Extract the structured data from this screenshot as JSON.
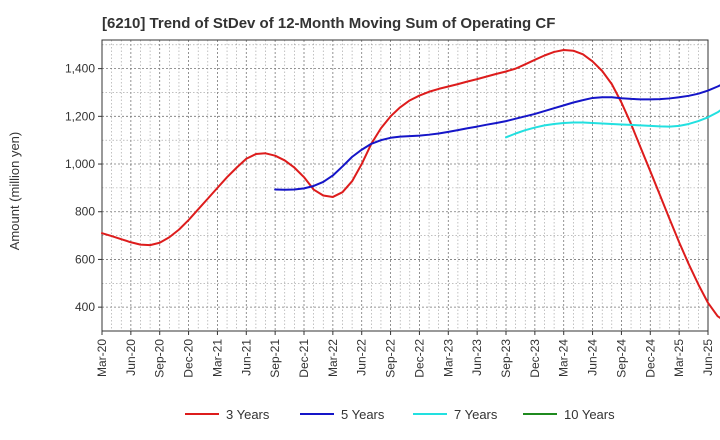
{
  "chart_data": {
    "type": "line",
    "title": "[6210]  Trend of StDev of 12-Month Moving Sum of Operating CF",
    "xlabel": "",
    "ylabel": "Amount (million yen)",
    "x_tick_labels": [
      "Mar-20",
      "Jun-20",
      "Sep-20",
      "Dec-20",
      "Mar-21",
      "Jun-21",
      "Sep-21",
      "Dec-21",
      "Mar-22",
      "Jun-22",
      "Sep-22",
      "Dec-22",
      "Mar-23",
      "Jun-23",
      "Sep-23",
      "Dec-23",
      "Mar-24",
      "Jun-24",
      "Sep-24",
      "Dec-24",
      "Mar-25",
      "Jun-25"
    ],
    "y_ticks": [
      400,
      600,
      800,
      1000,
      1200,
      1400
    ],
    "y_tick_labels": [
      "400",
      "600",
      "800",
      "1,000",
      "1,200",
      "1,400"
    ],
    "ylim": [
      300,
      1520
    ],
    "grid": true,
    "legend_position": "bottom",
    "series": [
      {
        "name": "3 Years",
        "color": "#dd1c1c",
        "start_month": 0,
        "values": [
          710,
          698,
          685,
          672,
          662,
          660,
          670,
          693,
          725,
          765,
          810,
          855,
          900,
          945,
          985,
          1022,
          1042,
          1045,
          1035,
          1015,
          985,
          945,
          893,
          868,
          862,
          882,
          928,
          1000,
          1085,
          1150,
          1200,
          1238,
          1267,
          1287,
          1303,
          1315,
          1325,
          1335,
          1346,
          1356,
          1367,
          1378,
          1388,
          1400,
          1418,
          1437,
          1455,
          1470,
          1478,
          1475,
          1460,
          1430,
          1390,
          1335,
          1258,
          1168,
          1068,
          970,
          870,
          770,
          672,
          580,
          495,
          418,
          362,
          335,
          340,
          365,
          400,
          440,
          470
        ]
      },
      {
        "name": "5 Years",
        "color": "#1515c8",
        "start_month": 18,
        "values": [
          893,
          892,
          893,
          898,
          908,
          925,
          952,
          990,
          1030,
          1060,
          1085,
          1100,
          1110,
          1115,
          1117,
          1119,
          1123,
          1128,
          1135,
          1142,
          1150,
          1157,
          1165,
          1172,
          1180,
          1190,
          1200,
          1210,
          1222,
          1234,
          1246,
          1258,
          1268,
          1277,
          1280,
          1280,
          1276,
          1273,
          1271,
          1271,
          1272,
          1275,
          1280,
          1286,
          1295,
          1308,
          1325,
          1345,
          1370,
          1400
        ]
      },
      {
        "name": "7 Years",
        "color": "#22e0e0",
        "start_month": 42,
        "values": [
          1112,
          1128,
          1142,
          1153,
          1162,
          1168,
          1172,
          1174,
          1174,
          1172,
          1170,
          1168,
          1166,
          1164,
          1162,
          1160,
          1158,
          1157,
          1160,
          1168,
          1180,
          1196,
          1217,
          1245
        ]
      },
      {
        "name": "10 Years",
        "color": "#1f8a1f",
        "start_month": 0,
        "values": []
      }
    ]
  }
}
